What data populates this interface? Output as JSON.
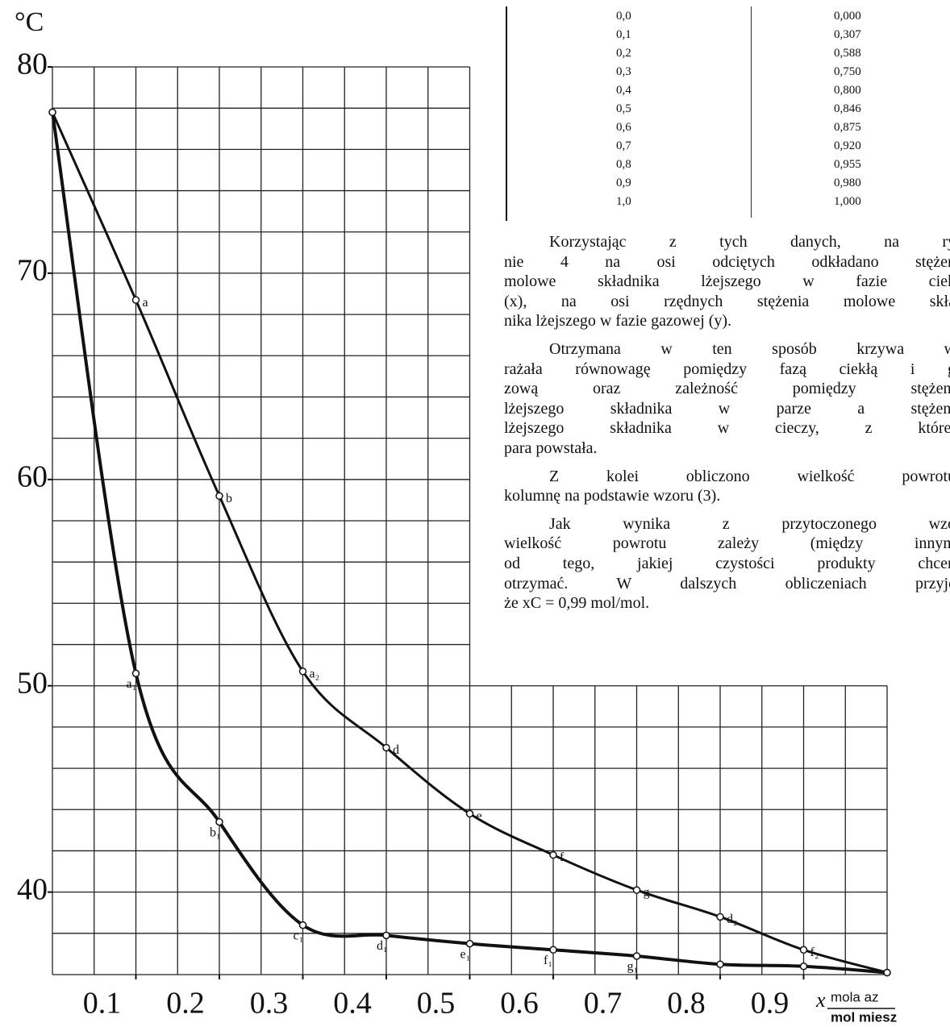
{
  "chart_data": {
    "type": "line",
    "ylabel": "°C",
    "xlabel": "x",
    "xunit_top": "mola az",
    "xunit_bottom": "mol miesz",
    "x": [
      0.0,
      0.1,
      0.2,
      0.3,
      0.4,
      0.5,
      0.6,
      0.7,
      0.8,
      0.9,
      1.0
    ],
    "series": [
      {
        "color": "#111111",
        "values": [
          77.8,
          68.7,
          59.2,
          50.7,
          47.0,
          43.8,
          41.8,
          40.1,
          38.8,
          37.2,
          36.1
        ],
        "point_labels": [
          null,
          "a",
          "b",
          "a₂",
          "d",
          "e",
          "f",
          "g",
          "d₂",
          "f₂",
          null
        ]
      },
      {
        "color": "#111111",
        "values": [
          77.8,
          50.6,
          43.4,
          38.4,
          37.9,
          37.5,
          37.2,
          36.9,
          36.5,
          36.4,
          36.1
        ],
        "point_labels": [
          null,
          "a₁",
          "b₁",
          "c₁",
          "d₁",
          "e₁",
          "f₁",
          "g₁",
          null,
          null,
          null
        ]
      }
    ],
    "xlim": [
      0,
      1.0
    ],
    "ylim": [
      36,
      80
    ],
    "xticks": [
      0.1,
      0.2,
      0.3,
      0.4,
      0.5,
      0.6,
      0.7,
      0.8,
      0.9
    ],
    "yticks": [
      40,
      50,
      60,
      70,
      80
    ],
    "minor_xticks": [
      0,
      0.05,
      0.1,
      0.15,
      0.2,
      0.25,
      0.3,
      0.35,
      0.4,
      0.45,
      0.5,
      0.55,
      0.6,
      0.65,
      0.7,
      0.75,
      0.8,
      0.85,
      0.9,
      0.95,
      1.0
    ],
    "minor_yticks": [
      36,
      38,
      40,
      42,
      44,
      46,
      48,
      50,
      52,
      54,
      56,
      58,
      60,
      62,
      64,
      66,
      68,
      70,
      72,
      74,
      76,
      78,
      80
    ],
    "grid": true
  },
  "table": {
    "rows": [
      [
        "0,0",
        "0,000"
      ],
      [
        "0,1",
        "0,307"
      ],
      [
        "0,2",
        "0,588"
      ],
      [
        "0,3",
        "0,750"
      ],
      [
        "0,4",
        "0,800"
      ],
      [
        "0,5",
        "0,846"
      ],
      [
        "0,6",
        "0,875"
      ],
      [
        "0,7",
        "0,920"
      ],
      [
        "0,8",
        "0,955"
      ],
      [
        "0,9",
        "0,980"
      ],
      [
        "1,0",
        "1,000"
      ]
    ]
  },
  "text": {
    "paragraphs": [
      [
        "Korzystając z tych danych, na ry",
        "nie 4 na osi odciętych odkładano stężen",
        "molowe składnika lżejszego w fazie ciek",
        "(x), na osi rzędnych stężenia molowe skła",
        "nika lżejszego w fazie gazowej (y)."
      ],
      [
        "Otrzymana w ten sposób krzywa w",
        "rażała równowagę pomiędzy fazą ciekłą i g",
        "zową oraz zależność pomiędzy stężeni",
        "lżejszego składnika w parze a stężeni",
        "lżejszego składnika w cieczy, z której",
        "para powstała."
      ],
      [
        "Z kolei obliczono wielkość powrotu",
        "kolumnę na podstawie wzoru (3)."
      ],
      [
        "Jak wynika z przytoczonego wzo",
        "wielkość powrotu zależy (między innym",
        "od tego, jakiej czystości produkty chcen",
        "otrzymać. W dalszych obliczeniach przyję",
        "że xC = 0,99 mol/mol."
      ]
    ]
  }
}
